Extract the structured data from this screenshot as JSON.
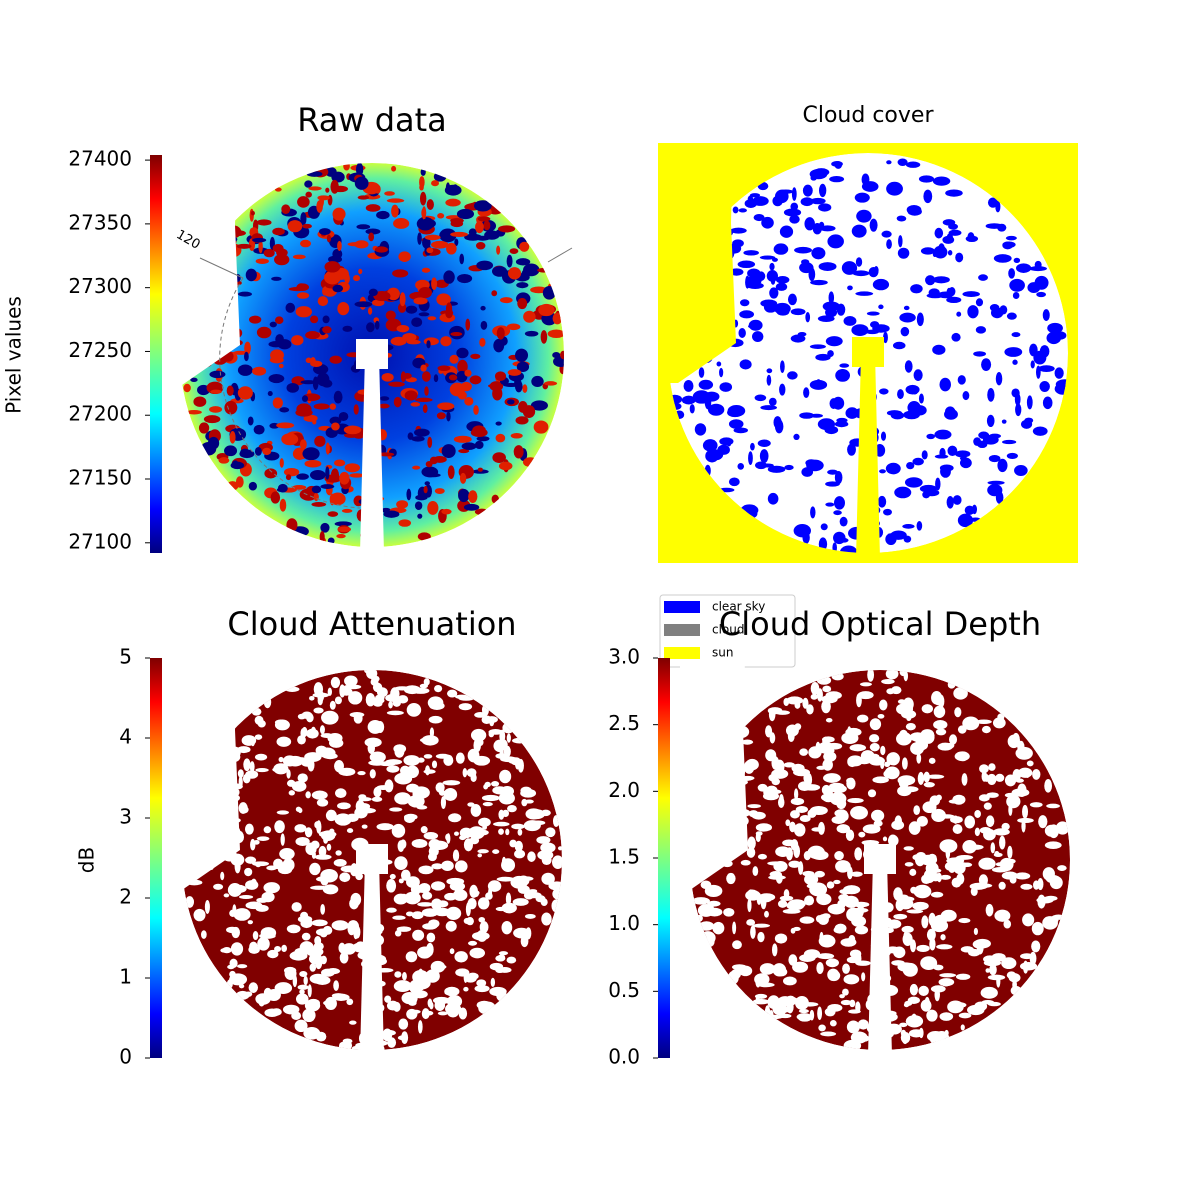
{
  "chart_data": [
    {
      "type": "image",
      "title": "Raw data",
      "colorbar_label": "Pixel values",
      "colormap": "jet",
      "ylim": [
        27092,
        27404
      ],
      "yticks": [
        27100,
        27150,
        27200,
        27250,
        27300,
        27350,
        27400
      ],
      "annotation": "120"
    },
    {
      "type": "image",
      "title": "Cloud cover",
      "legend": "outside lower left",
      "legend_entries": [
        {
          "name": "clear sky",
          "color": "#0000ff"
        },
        {
          "name": "cloud",
          "color": "#808080"
        },
        {
          "name": "sun",
          "color": "#ffff00"
        }
      ]
    },
    {
      "type": "image",
      "title": "Cloud Attenuation",
      "colorbar_label": "dB",
      "colormap": "jet",
      "ylim": [
        0,
        5
      ],
      "yticks": [
        0,
        1,
        2,
        3,
        4,
        5
      ]
    },
    {
      "type": "image",
      "title": "Cloud Optical Depth",
      "colormap": "jet",
      "ylim": [
        0,
        3
      ],
      "yticks": [
        {
          "value": 0,
          "label": "0.0"
        },
        {
          "value": 0.5,
          "label": "0.5"
        },
        {
          "value": 1,
          "label": "1.0"
        },
        {
          "value": 1.5,
          "label": "1.5"
        },
        {
          "value": 2,
          "label": "2.0"
        },
        {
          "value": 2.5,
          "label": "2.5"
        },
        {
          "value": 3,
          "label": "3.0"
        }
      ]
    }
  ]
}
